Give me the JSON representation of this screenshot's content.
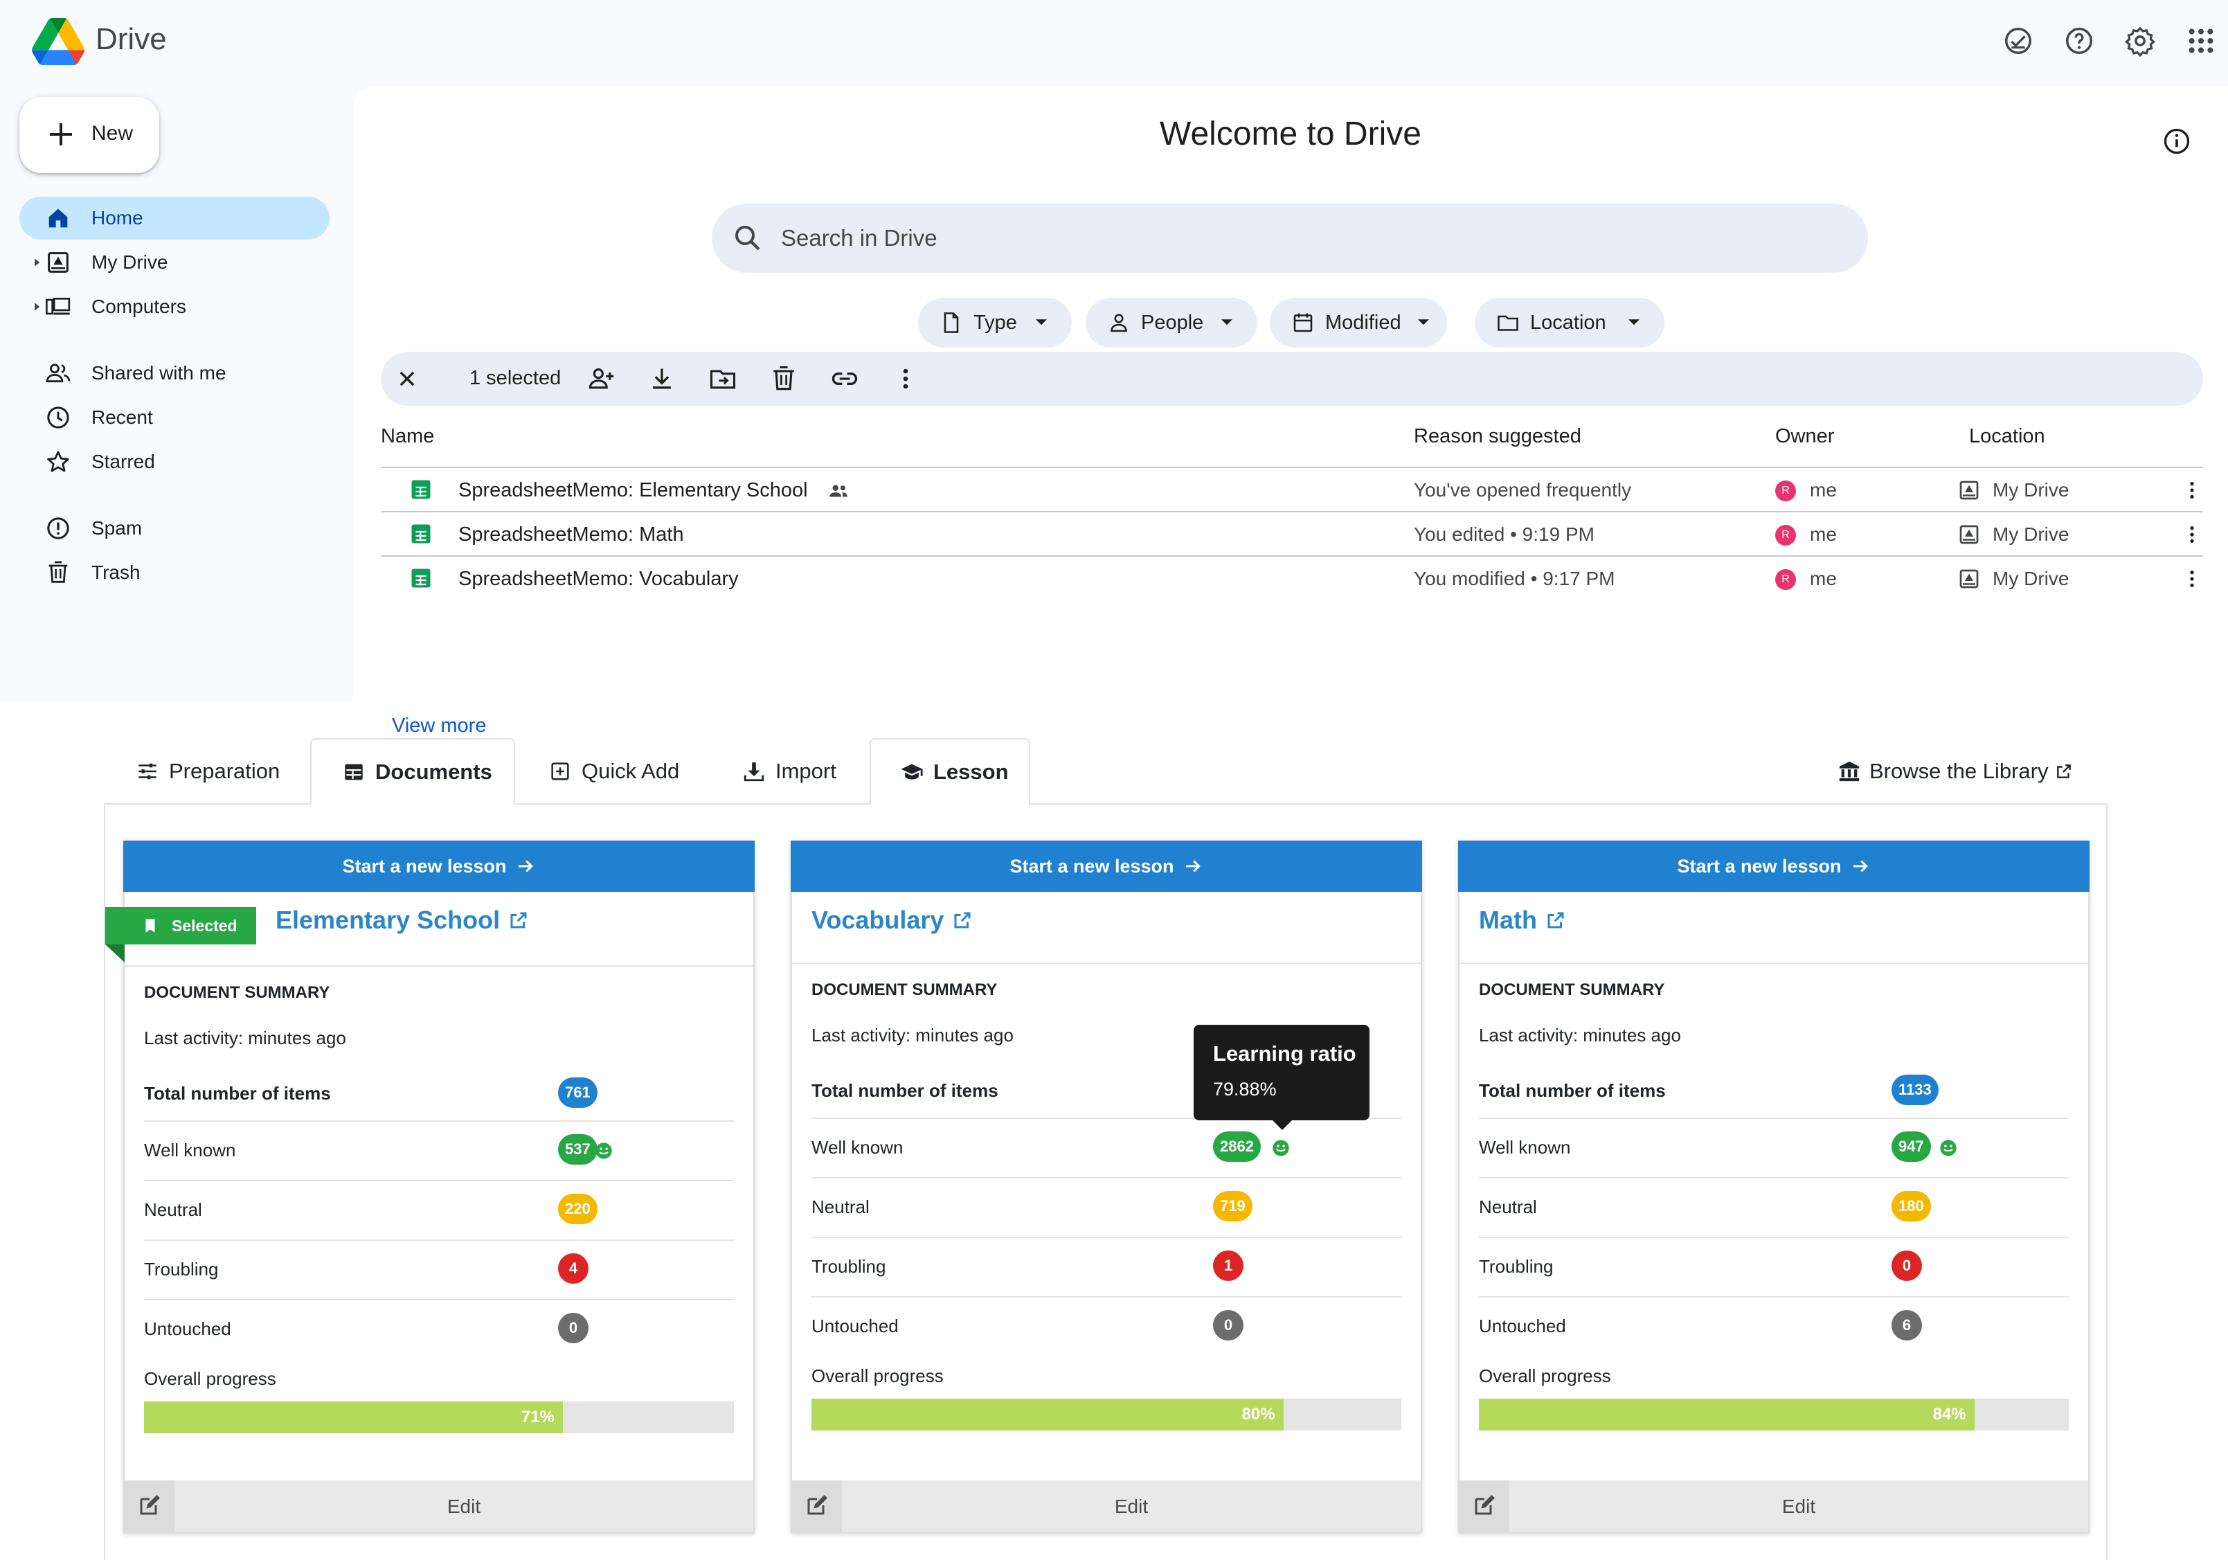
{
  "colors": {
    "drive_bg": "#f8fafd",
    "active_nav": "#c2e7ff",
    "search_bg": "#e9eef6",
    "card_header": "#1f81cf",
    "badge_blue": "#1f81cf",
    "badge_green": "#28a745",
    "badge_yellow": "#f5b800",
    "badge_red": "#dc2626",
    "badge_gray": "#6c6c6c",
    "progress_fill": "#b5d95a",
    "selected_ribbon": "#28a745",
    "link": "#0b57d0"
  },
  "drive": {
    "app_title": "Drive",
    "top_icons": [
      "offline-ready-icon",
      "help-icon",
      "settings-icon",
      "apps-grid-icon"
    ],
    "new_button": "New",
    "nav": [
      {
        "label": "Home",
        "icon": "home-icon",
        "active": true
      },
      {
        "label": "My Drive",
        "icon": "my-drive-icon",
        "expandable": true
      },
      {
        "label": "Computers",
        "icon": "computers-icon",
        "expandable": true
      },
      {
        "label": "Shared with me",
        "icon": "shared-icon"
      },
      {
        "label": "Recent",
        "icon": "clock-icon"
      },
      {
        "label": "Starred",
        "icon": "star-icon"
      },
      {
        "label": "Spam",
        "icon": "spam-icon"
      },
      {
        "label": "Trash",
        "icon": "trash-icon"
      }
    ],
    "welcome": "Welcome to Drive",
    "search_placeholder": "Search in Drive",
    "filters": [
      {
        "label": "Type",
        "icon": "file-icon"
      },
      {
        "label": "People",
        "icon": "person-icon"
      },
      {
        "label": "Modified",
        "icon": "calendar-icon"
      },
      {
        "label": "Location",
        "icon": "folder-icon"
      }
    ],
    "selection": {
      "text": "1 selected",
      "actions": [
        "share-icon",
        "download-icon",
        "move-icon",
        "delete-icon",
        "link-icon",
        "more-vert-icon"
      ]
    },
    "columns": [
      "Name",
      "Reason suggested",
      "Owner",
      "Location"
    ],
    "files": [
      {
        "name": "SpreadsheetMemo: Elementary School",
        "shared": true,
        "reason": "You've opened frequently",
        "avatar": "R",
        "owner": "me",
        "location": "My Drive"
      },
      {
        "name": "SpreadsheetMemo: Math",
        "shared": false,
        "reason": "You edited • 9:19 PM",
        "avatar": "R",
        "owner": "me",
        "location": "My Drive"
      },
      {
        "name": "SpreadsheetMemo: Vocabulary",
        "shared": false,
        "reason": "You modified • 9:17 PM",
        "avatar": "R",
        "owner": "me",
        "location": "My Drive"
      }
    ],
    "view_more": "View more"
  },
  "ext": {
    "tabs": [
      {
        "label": "Preparation",
        "icon": "sliders-icon"
      },
      {
        "label": "Documents",
        "icon": "table-icon",
        "active": true
      },
      {
        "label": "Quick Add",
        "icon": "plus-square-icon"
      },
      {
        "label": "Import",
        "icon": "import-icon"
      },
      {
        "label": "Lesson",
        "icon": "graduation-cap-icon",
        "active": true
      }
    ],
    "browse_library": "Browse the Library",
    "tooltip": {
      "title": "Learning ratio",
      "value": "79.88%"
    },
    "cards": [
      {
        "header": "Start a new lesson",
        "title": "Elementary School",
        "selected": true,
        "selected_label": "Selected",
        "summary_header": "DOCUMENT SUMMARY",
        "last_activity": "Last activity: minutes ago",
        "total_label": "Total number of items",
        "total": "761",
        "well_known_label": "Well known",
        "well_known": "537",
        "neutral_label": "Neutral",
        "neutral": "220",
        "troubling_label": "Troubling",
        "troubling": "4",
        "untouched_label": "Untouched",
        "untouched": "0",
        "progress_label": "Overall progress",
        "progress_pct": 71,
        "progress_text": "71%",
        "edit": "Edit"
      },
      {
        "header": "Start a new lesson",
        "title": "Vocabulary",
        "selected": false,
        "summary_header": "DOCUMENT SUMMARY",
        "last_activity": "Last activity: minutes ago",
        "total_label": "Total number of items",
        "total": "",
        "well_known_label": "Well known",
        "well_known": "2862",
        "neutral_label": "Neutral",
        "neutral": "719",
        "troubling_label": "Troubling",
        "troubling": "1",
        "untouched_label": "Untouched",
        "untouched": "0",
        "progress_label": "Overall progress",
        "progress_pct": 80,
        "progress_text": "80%",
        "edit": "Edit"
      },
      {
        "header": "Start a new lesson",
        "title": "Math",
        "selected": false,
        "summary_header": "DOCUMENT SUMMARY",
        "last_activity": "Last activity: minutes ago",
        "total_label": "Total number of items",
        "total": "1133",
        "well_known_label": "Well known",
        "well_known": "947",
        "neutral_label": "Neutral",
        "neutral": "180",
        "troubling_label": "Troubling",
        "troubling": "0",
        "untouched_label": "Untouched",
        "untouched": "6",
        "progress_label": "Overall progress",
        "progress_pct": 84,
        "progress_text": "84%",
        "edit": "Edit"
      }
    ]
  }
}
